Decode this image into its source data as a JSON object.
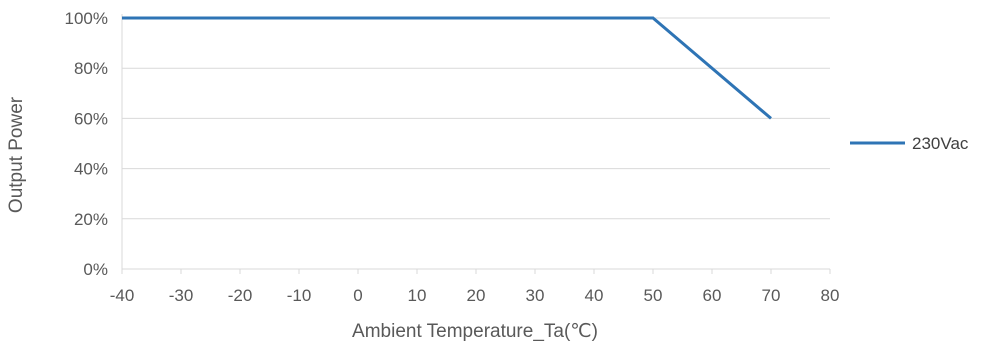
{
  "chart_data": {
    "type": "line",
    "xlabel": "Ambient Temperature_Ta(℃)",
    "ylabel": "Output Power",
    "xlim": [
      -40,
      80
    ],
    "ylim": [
      0,
      100
    ],
    "x_ticks": [
      -40,
      -30,
      -20,
      -10,
      0,
      10,
      20,
      30,
      40,
      50,
      60,
      70,
      80
    ],
    "y_ticks": [
      0,
      20,
      40,
      60,
      80,
      100
    ],
    "y_tick_suffix": "%",
    "grid": "horizontal",
    "legend_position": "right",
    "colors": {
      "series": "#2e74b5",
      "grid": "#d9d9d9",
      "text": "#595959"
    },
    "series": [
      {
        "name": "230Vac",
        "x": [
          -40,
          50,
          70
        ],
        "y": [
          100,
          100,
          60
        ]
      }
    ]
  }
}
